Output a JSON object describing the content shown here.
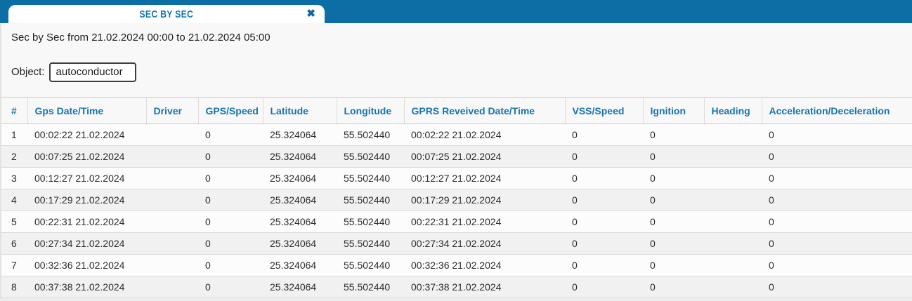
{
  "tab": {
    "title": "SEC BY SEC",
    "close_glyph": "✖"
  },
  "report": {
    "subtitle": "Sec by Sec from 21.02.2024 00:00 to 21.02.2024 05:00",
    "object_label": "Object:",
    "object_value": "autoconductor"
  },
  "table": {
    "columns": [
      {
        "key": "num",
        "label": "#"
      },
      {
        "key": "gps_datetime",
        "label": "Gps Date/Time"
      },
      {
        "key": "driver",
        "label": "Driver"
      },
      {
        "key": "gps_speed",
        "label": "GPS/Speed"
      },
      {
        "key": "latitude",
        "label": "Latitude"
      },
      {
        "key": "longitude",
        "label": "Longitude"
      },
      {
        "key": "gprs_received_datetime",
        "label": "GPRS Reveived Date/Time"
      },
      {
        "key": "vss_speed",
        "label": "VSS/Speed"
      },
      {
        "key": "ignition",
        "label": "Ignition"
      },
      {
        "key": "heading",
        "label": "Heading"
      },
      {
        "key": "accel_decel",
        "label": "Acceleration/Deceleration"
      }
    ],
    "rows": [
      {
        "num": "1",
        "gps_datetime": "00:02:22 21.02.2024",
        "driver": "",
        "gps_speed": "0",
        "latitude": "25.324064",
        "longitude": "55.502440",
        "gprs_received_datetime": "00:02:22 21.02.2024",
        "vss_speed": "0",
        "ignition": "0",
        "heading": "",
        "accel_decel": "0"
      },
      {
        "num": "2",
        "gps_datetime": "00:07:25 21.02.2024",
        "driver": "",
        "gps_speed": "0",
        "latitude": "25.324064",
        "longitude": "55.502440",
        "gprs_received_datetime": "00:07:25 21.02.2024",
        "vss_speed": "0",
        "ignition": "0",
        "heading": "",
        "accel_decel": "0"
      },
      {
        "num": "3",
        "gps_datetime": "00:12:27 21.02.2024",
        "driver": "",
        "gps_speed": "0",
        "latitude": "25.324064",
        "longitude": "55.502440",
        "gprs_received_datetime": "00:12:27 21.02.2024",
        "vss_speed": "0",
        "ignition": "0",
        "heading": "",
        "accel_decel": "0"
      },
      {
        "num": "4",
        "gps_datetime": "00:17:29 21.02.2024",
        "driver": "",
        "gps_speed": "0",
        "latitude": "25.324064",
        "longitude": "55.502440",
        "gprs_received_datetime": "00:17:29 21.02.2024",
        "vss_speed": "0",
        "ignition": "0",
        "heading": "",
        "accel_decel": "0"
      },
      {
        "num": "5",
        "gps_datetime": "00:22:31 21.02.2024",
        "driver": "",
        "gps_speed": "0",
        "latitude": "25.324064",
        "longitude": "55.502440",
        "gprs_received_datetime": "00:22:31 21.02.2024",
        "vss_speed": "0",
        "ignition": "0",
        "heading": "",
        "accel_decel": "0"
      },
      {
        "num": "6",
        "gps_datetime": "00:27:34 21.02.2024",
        "driver": "",
        "gps_speed": "0",
        "latitude": "25.324064",
        "longitude": "55.502440",
        "gprs_received_datetime": "00:27:34 21.02.2024",
        "vss_speed": "0",
        "ignition": "0",
        "heading": "",
        "accel_decel": "0"
      },
      {
        "num": "7",
        "gps_datetime": "00:32:36 21.02.2024",
        "driver": "",
        "gps_speed": "0",
        "latitude": "25.324064",
        "longitude": "55.502440",
        "gprs_received_datetime": "00:32:36 21.02.2024",
        "vss_speed": "0",
        "ignition": "0",
        "heading": "",
        "accel_decel": "0"
      },
      {
        "num": "8",
        "gps_datetime": "00:37:38 21.02.2024",
        "driver": "",
        "gps_speed": "0",
        "latitude": "25.324064",
        "longitude": "55.502440",
        "gprs_received_datetime": "00:37:38 21.02.2024",
        "vss_speed": "0",
        "ignition": "0",
        "heading": "",
        "accel_decel": "0"
      }
    ]
  },
  "colors": {
    "topbar": "#0d6da5",
    "tab_title": "#1478b1",
    "table_header_text": "#1474ad"
  }
}
